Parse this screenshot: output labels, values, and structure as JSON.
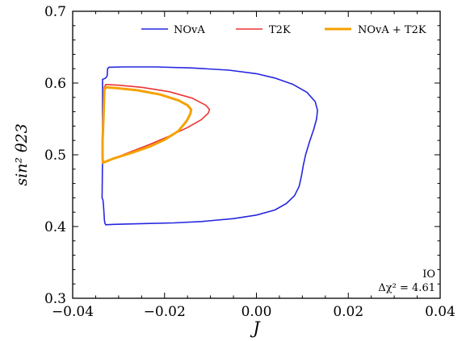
{
  "chart_data": {
    "type": "line",
    "xlabel": "J",
    "ylabel": "sin² θ23",
    "xlim": [
      -0.04,
      0.04
    ],
    "ylim": [
      0.3,
      0.7
    ],
    "x_ticks": [
      "−0.04",
      "−0.02",
      "0.00",
      "0.02",
      "0.04"
    ],
    "y_ticks": [
      "0.3",
      "0.4",
      "0.5",
      "0.6",
      "0.7"
    ],
    "legend_position": "top",
    "annotations": [
      "IO",
      "Δχ² = 4.61"
    ],
    "series": [
      {
        "name": "NOvA",
        "color": "#2626e0",
        "points": [
          [
            -0.0328,
            0.4025
          ],
          [
            -0.031,
            0.403
          ],
          [
            -0.025,
            0.404
          ],
          [
            -0.018,
            0.405
          ],
          [
            -0.012,
            0.407
          ],
          [
            -0.005,
            0.411
          ],
          [
            0.0,
            0.416
          ],
          [
            0.004,
            0.423
          ],
          [
            0.0065,
            0.432
          ],
          [
            0.0083,
            0.443
          ],
          [
            0.0093,
            0.456
          ],
          [
            0.0098,
            0.47
          ],
          [
            0.0102,
            0.485
          ],
          [
            0.0107,
            0.5
          ],
          [
            0.0115,
            0.517
          ],
          [
            0.0125,
            0.536
          ],
          [
            0.0131,
            0.55
          ],
          [
            0.0133,
            0.562
          ],
          [
            0.0128,
            0.574
          ],
          [
            0.011,
            0.587
          ],
          [
            0.008,
            0.598
          ],
          [
            0.004,
            0.607
          ],
          [
            0.0,
            0.613
          ],
          [
            -0.006,
            0.618
          ],
          [
            -0.014,
            0.621
          ],
          [
            -0.022,
            0.6225
          ],
          [
            -0.029,
            0.6225
          ],
          [
            -0.0321,
            0.622
          ],
          [
            -0.0324,
            0.62
          ],
          [
            -0.0325,
            0.61
          ],
          [
            -0.0328,
            0.607
          ],
          [
            -0.0335,
            0.605
          ],
          [
            -0.0335,
            0.6
          ],
          [
            -0.0335,
            0.55
          ],
          [
            -0.0335,
            0.5
          ],
          [
            -0.0336,
            0.44
          ],
          [
            -0.0334,
            0.437
          ],
          [
            -0.0333,
            0.43
          ],
          [
            -0.0332,
            0.42
          ],
          [
            -0.0331,
            0.41
          ],
          [
            -0.033,
            0.405
          ],
          [
            -0.0328,
            0.4025
          ]
        ]
      },
      {
        "name": "T2K",
        "color": "#ee3333",
        "points": [
          [
            -0.0334,
            0.489
          ],
          [
            -0.031,
            0.495
          ],
          [
            -0.027,
            0.505
          ],
          [
            -0.023,
            0.515
          ],
          [
            -0.019,
            0.526
          ],
          [
            -0.015,
            0.538
          ],
          [
            -0.012,
            0.549
          ],
          [
            -0.0105,
            0.558
          ],
          [
            -0.0102,
            0.563
          ],
          [
            -0.011,
            0.569
          ],
          [
            -0.014,
            0.579
          ],
          [
            -0.019,
            0.588
          ],
          [
            -0.025,
            0.594
          ],
          [
            -0.03,
            0.597
          ],
          [
            -0.0328,
            0.598
          ],
          [
            -0.0331,
            0.594
          ],
          [
            -0.0333,
            0.55
          ],
          [
            -0.0335,
            0.52
          ],
          [
            -0.0335,
            0.495
          ],
          [
            -0.0334,
            0.489
          ]
        ]
      },
      {
        "name": "NOvA + T2K",
        "color": "#f5a100",
        "points": [
          [
            -0.0334,
            0.489
          ],
          [
            -0.031,
            0.495
          ],
          [
            -0.027,
            0.503
          ],
          [
            -0.023,
            0.512
          ],
          [
            -0.02,
            0.521
          ],
          [
            -0.017,
            0.533
          ],
          [
            -0.0152,
            0.547
          ],
          [
            -0.0144,
            0.557
          ],
          [
            -0.0142,
            0.563
          ],
          [
            -0.015,
            0.569
          ],
          [
            -0.017,
            0.576
          ],
          [
            -0.021,
            0.584
          ],
          [
            -0.026,
            0.59
          ],
          [
            -0.0305,
            0.593
          ],
          [
            -0.0328,
            0.594
          ],
          [
            -0.0331,
            0.59
          ],
          [
            -0.0333,
            0.55
          ],
          [
            -0.0335,
            0.52
          ],
          [
            -0.0335,
            0.495
          ],
          [
            -0.0334,
            0.489
          ]
        ]
      }
    ]
  }
}
